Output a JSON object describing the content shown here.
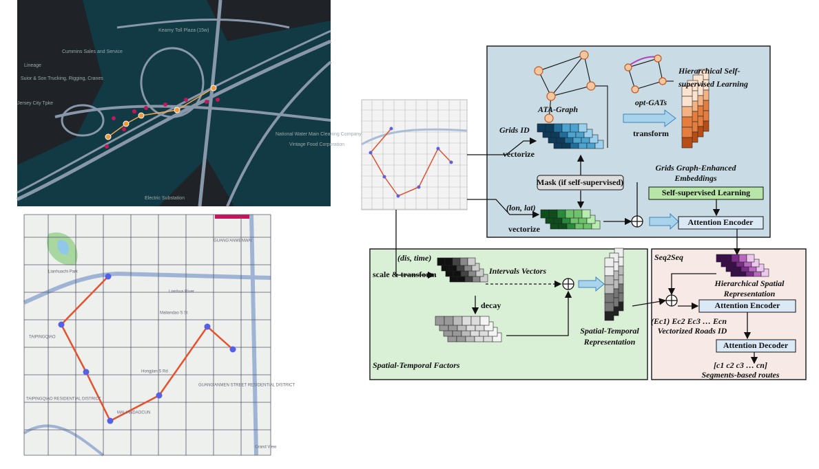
{
  "top_map": {
    "labels": [
      "Kearny Toll Plaza (15w)",
      "Cummins Sales and Service",
      "Lineage",
      "Suior & Son Trucking, Rigging, Cranes",
      "Jersey City Tpke",
      "National Water Main Cleaning Company",
      "Vintage Food Corporation",
      "Electric Substation"
    ]
  },
  "bottom_map": {
    "labels": [
      "Lianhuachi Park",
      "GUANG'ANMENWAI",
      "Lianhua River",
      "Maliandao S St",
      "TAIPINGQIAO",
      "Hongjian S Rd",
      "GUANG'ANMEN STREET RESIDENTIAL DISTRICT",
      "MALIANDAOCUN",
      "TAIPINGQIAO RESIDENTIAL DISTRICT",
      "Grand View"
    ]
  },
  "diagram": {
    "hierarchical": {
      "title": [
        "Hierarchical Self-",
        "supervised Learning"
      ],
      "ata_graph": "ATA-Graph",
      "opt_gats": "opt-GATs",
      "transform": "transform",
      "grids_id": "Grids ID",
      "vectorize_1": "vectorize",
      "embeddings": [
        "Grids Graph-Enhanced",
        "Embeddings"
      ],
      "mask": "Mask (if self-supervised)",
      "ssl": "Self-supervised Learning",
      "lonlat": "(lon, lat)",
      "vectorize_2": "vectorize",
      "encoder": "Attention Encoder"
    },
    "seq2seq": {
      "title": "Seq2Seq",
      "hier_rep": [
        "Hierarchical Spatial",
        "Representation"
      ],
      "encoder": "Attention Encoder",
      "roads": [
        "(Ec1) Ec2 Ec3 … Ecn",
        "Vectorized Roads ID"
      ],
      "decoder": "Attention Decoder",
      "routes": [
        "[c1 c2 c3 … cn]",
        "Segments-based routes"
      ]
    },
    "spatial_temporal": {
      "title": "Spatial-Temporal Factors",
      "dis_time": "(dis, time)",
      "scale": "scale & transform",
      "intervals": "Intervals Vectors",
      "decay": "decay",
      "representation": [
        "Spatial-Temporal",
        "Representation"
      ]
    }
  }
}
